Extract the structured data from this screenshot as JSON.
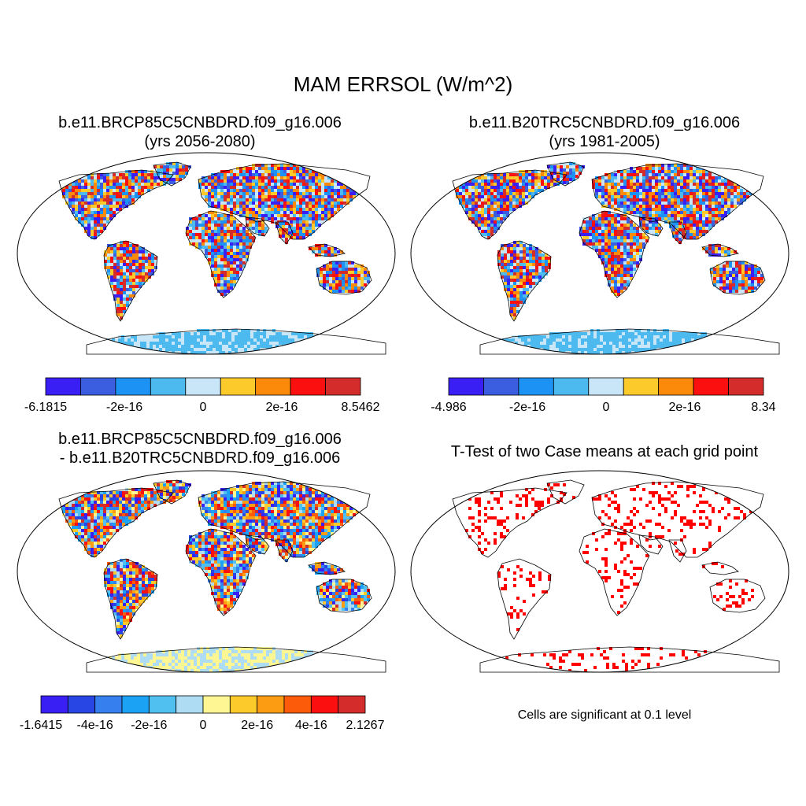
{
  "title": "MAM ERRSOL (W/m^2)",
  "panels": [
    {
      "id": "case1",
      "title_line1": "b.e11.BRCP85C5CNBDRD.f09_g16.006",
      "title_line2": "(yrs 2056-2080)",
      "colorbar": {
        "colors": [
          "#3a1ff5",
          "#3b5ee0",
          "#1c92f5",
          "#4cbaee",
          "#c8e6f8",
          "#fcca2a",
          "#fb8a0a",
          "#fc0f0f",
          "#d42b2b"
        ],
        "labels": [
          "-6.1815",
          "-2e-16",
          "0",
          "2e-16",
          "8.5462"
        ]
      }
    },
    {
      "id": "case2",
      "title_line1": "b.e11.B20TRC5CNBDRD.f09_g16.006",
      "title_line2": "(yrs 1981-2005)",
      "colorbar": {
        "colors": [
          "#3a1ff5",
          "#3b5ee0",
          "#1c92f5",
          "#4cbaee",
          "#c8e6f8",
          "#fcca2a",
          "#fb8a0a",
          "#fc0f0f",
          "#d42b2b"
        ],
        "labels": [
          "-4.986",
          "-2e-16",
          "0",
          "2e-16",
          "8.34"
        ]
      }
    },
    {
      "id": "diff",
      "title_line1": "b.e11.BRCP85C5CNBDRD.f09_g16.006",
      "title_line2": "- b.e11.B20TRC5CNBDRD.f09_g16.006",
      "colorbar": {
        "colors": [
          "#3a1ff5",
          "#2746e3",
          "#357fef",
          "#1ba2f5",
          "#4fc0f0",
          "#aedcf2",
          "#fdf692",
          "#fcca2a",
          "#fb9c12",
          "#fc5c0a",
          "#fc0f0f",
          "#d42b2b"
        ],
        "labels": [
          "-1.6415",
          "-4e-16",
          "-2e-16",
          "0",
          "2e-16",
          "4e-16",
          "2.1267"
        ]
      }
    },
    {
      "id": "ttest",
      "title_line1": "T-Test of two Case means at each grid point",
      "note": "Cells are significant at 0.1 level",
      "dot_color": "#ff0000"
    }
  ]
}
